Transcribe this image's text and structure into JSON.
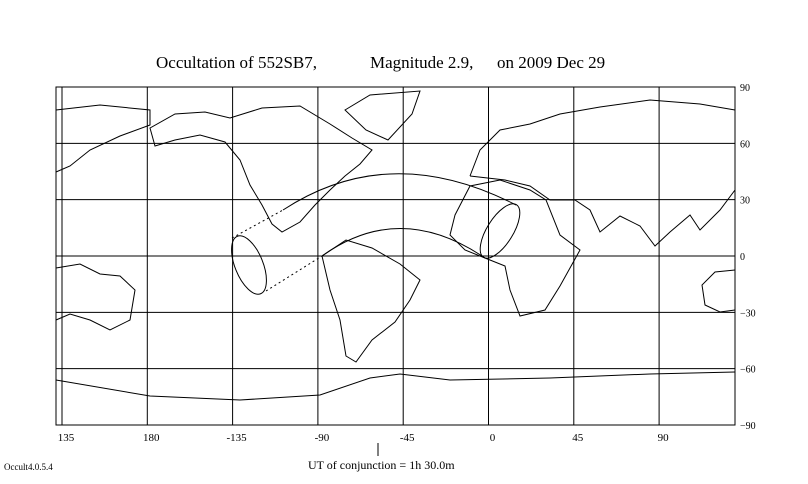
{
  "header": {
    "title_parts": [
      "Occultation  of  552SB7,",
      "Magnitude 2.9,",
      "on  2009 Dec 29"
    ]
  },
  "map": {
    "longitude_labels": [
      "135",
      "180",
      "-135",
      "-90",
      "-45",
      "0",
      "45",
      "90"
    ],
    "latitude_labels": [
      "90",
      "60",
      "30",
      "0",
      "−30",
      "−60",
      "−90"
    ]
  },
  "footer": {
    "conjunction": "UT of conjunction =  1h 30.0m",
    "version": "Occult4.0.5.4"
  }
}
